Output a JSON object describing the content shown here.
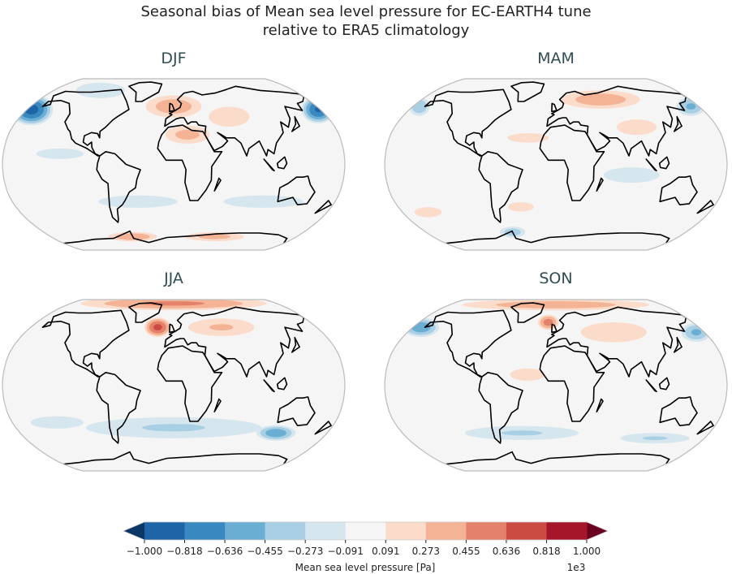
{
  "title_line1": "Seasonal bias of Mean sea level pressure for EC-EARTH4 tune",
  "title_line2": "relative to ERA5 climatology",
  "chart_data": {
    "type": "map",
    "projection": "Robinson",
    "panels": [
      {
        "title": "DJF",
        "features": [
          {
            "lon": -175,
            "lat": 52,
            "rlon": 28,
            "rlat": 16,
            "value": -0.9
          },
          {
            "lon": 178,
            "lat": 52,
            "rlon": 22,
            "rlat": 14,
            "value": -0.85
          },
          {
            "lon": -110,
            "lat": 72,
            "rlon": 50,
            "rlat": 10,
            "value": -0.2
          },
          {
            "lon": 0,
            "lat": 55,
            "rlon": 40,
            "rlat": 12,
            "value": 0.4
          },
          {
            "lon": 15,
            "lat": 28,
            "rlon": 28,
            "rlat": 10,
            "value": 0.35
          },
          {
            "lon": 65,
            "lat": 45,
            "rlon": 30,
            "rlat": 12,
            "value": 0.25
          },
          {
            "lon": -40,
            "lat": -35,
            "rlon": 60,
            "rlat": 8,
            "value": -0.2
          },
          {
            "lon": 100,
            "lat": -35,
            "rlon": 60,
            "rlat": 8,
            "value": -0.2
          },
          {
            "lon": -120,
            "lat": 10,
            "rlon": 40,
            "rlat": 8,
            "value": -0.15
          },
          {
            "lon": -60,
            "lat": -70,
            "rlon": 40,
            "rlat": 5,
            "value": 0.45
          },
          {
            "lon": 60,
            "lat": -70,
            "rlon": 50,
            "rlat": 5,
            "value": 0.35
          }
        ]
      },
      {
        "title": "MAM",
        "features": [
          {
            "lon": 170,
            "lat": 55,
            "rlon": 20,
            "rlat": 10,
            "value": -0.5
          },
          {
            "lon": -172,
            "lat": 55,
            "rlon": 15,
            "rlat": 10,
            "value": -0.45
          },
          {
            "lon": 60,
            "lat": 62,
            "rlon": 60,
            "rlat": 10,
            "value": 0.4
          },
          {
            "lon": 90,
            "lat": 35,
            "rlon": 30,
            "rlat": 10,
            "value": 0.2
          },
          {
            "lon": -30,
            "lat": 25,
            "rlon": 30,
            "rlat": 6,
            "value": 0.2
          },
          {
            "lon": 80,
            "lat": -10,
            "rlon": 40,
            "rlat": 10,
            "value": -0.2
          },
          {
            "lon": -150,
            "lat": -45,
            "rlon": 20,
            "rlat": 6,
            "value": 0.25
          },
          {
            "lon": -40,
            "lat": -40,
            "rlon": 20,
            "rlat": 6,
            "value": 0.2
          },
          {
            "lon": -60,
            "lat": -65,
            "rlon": 20,
            "rlat": 6,
            "value": -0.4
          }
        ]
      },
      {
        "title": "JJA",
        "features": [
          {
            "lon": 0,
            "lat": 82,
            "rlon": 180,
            "rlat": 7,
            "value": 0.5
          },
          {
            "lon": -20,
            "lat": 55,
            "rlon": 18,
            "rlat": 10,
            "value": 0.7
          },
          {
            "lon": 60,
            "lat": 55,
            "rlon": 50,
            "rlat": 10,
            "value": 0.3
          },
          {
            "lon": 0,
            "lat": -40,
            "rlon": 120,
            "rlat": 12,
            "value": -0.3
          },
          {
            "lon": 120,
            "lat": -45,
            "rlon": 25,
            "rlat": 8,
            "value": -0.6
          },
          {
            "lon": -130,
            "lat": -35,
            "rlon": 40,
            "rlat": 8,
            "value": -0.2
          }
        ]
      },
      {
        "title": "SON",
        "features": [
          {
            "lon": 0,
            "lat": 80,
            "rlon": 180,
            "rlat": 6,
            "value": 0.4
          },
          {
            "lon": -10,
            "lat": 60,
            "rlon": 15,
            "rlat": 8,
            "value": 0.55
          },
          {
            "lon": -170,
            "lat": 55,
            "rlon": 25,
            "rlat": 10,
            "value": -0.6
          },
          {
            "lon": 170,
            "lat": 50,
            "rlon": 20,
            "rlat": 10,
            "value": -0.5
          },
          {
            "lon": 70,
            "lat": 50,
            "rlon": 50,
            "rlat": 12,
            "value": 0.25
          },
          {
            "lon": -30,
            "lat": 10,
            "rlon": 25,
            "rlat": 8,
            "value": 0.2
          },
          {
            "lon": -40,
            "lat": -45,
            "rlon": 80,
            "rlat": 8,
            "value": -0.3
          },
          {
            "lon": 120,
            "lat": -50,
            "rlon": 50,
            "rlat": 6,
            "value": -0.3
          }
        ]
      }
    ],
    "colorbar": {
      "label": "Mean sea level pressure [Pa]",
      "multiplier": "1e3",
      "ticks": [
        "−1.000",
        "−0.818",
        "−0.636",
        "−0.455",
        "−0.273",
        "−0.091",
        "0.091",
        "0.273",
        "0.455",
        "0.636",
        "0.818",
        "1.000"
      ],
      "levels": [
        -1.0,
        -0.818,
        -0.636,
        -0.455,
        -0.273,
        -0.091,
        0.091,
        0.273,
        0.455,
        0.636,
        0.818,
        1.0
      ],
      "colors": [
        "#2064a8",
        "#3a88c0",
        "#6aaed3",
        "#a8cfe4",
        "#d6e6ef",
        "#f5f5f5",
        "#fbdccb",
        "#f4b394",
        "#e4816a",
        "#cb4a42",
        "#a6162a"
      ],
      "under_color": "#0b3766",
      "over_color": "#6b0120",
      "extend": "both"
    }
  }
}
